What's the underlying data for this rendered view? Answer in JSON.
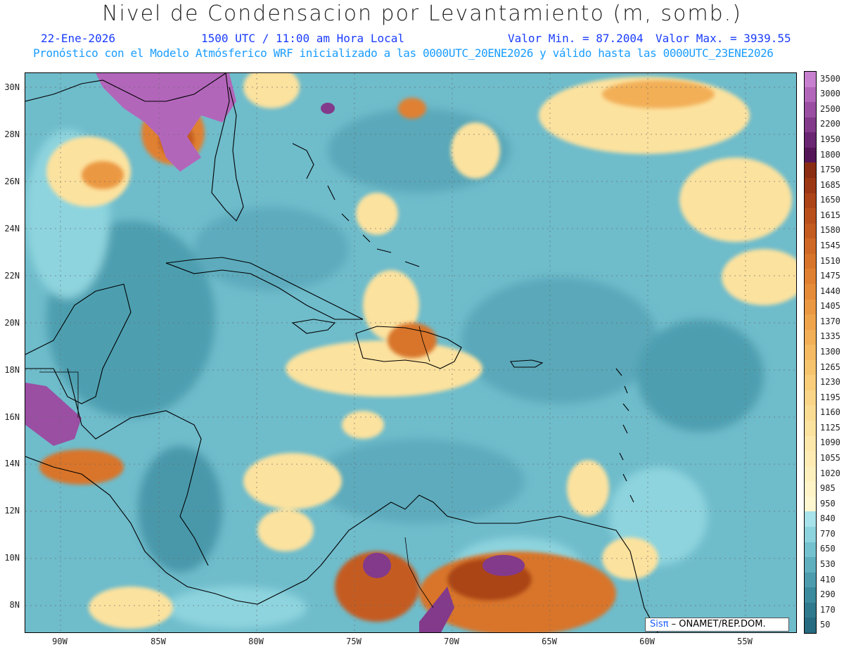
{
  "title": "Nivel de Condensacion por Levantamiento (m, somb.)",
  "date": "22-Ene-2026",
  "time": "1500 UTC / 11:00 am Hora Local",
  "min_label": "Valor Min. = 87.2004",
  "max_label": "Valor Max. = 3939.55",
  "forecast_note": "Pronóstico con el Modelo Atmósferico WRF inicializado a las 0000UTC_20ENE2026 y válido hasta las  0000UTC_23ENE2026",
  "lat_labels": [
    "30N",
    "28N",
    "26N",
    "24N",
    "22N",
    "20N",
    "18N",
    "16N",
    "14N",
    "12N",
    "10N",
    "8N"
  ],
  "lon_labels": [
    "90W",
    "85W",
    "80W",
    "75W",
    "70W",
    "65W",
    "60W",
    "55W"
  ],
  "legend": {
    "labels": [
      "3500",
      "3000",
      "2500",
      "2200",
      "1950",
      "1800",
      "1750",
      "1685",
      "1650",
      "1615",
      "1580",
      "1545",
      "1510",
      "1475",
      "1440",
      "1405",
      "1370",
      "1335",
      "1300",
      "1265",
      "1230",
      "1195",
      "1160",
      "1125",
      "1090",
      "1055",
      "1020",
      "985",
      "950",
      "840",
      "770",
      "650",
      "530",
      "410",
      "290",
      "170",
      "50"
    ],
    "colors": [
      "#c77fcf",
      "#b266ba",
      "#9a4fa3",
      "#833a8b",
      "#6a2672",
      "#551658",
      "#8a2d12",
      "#9c3714",
      "#ac4418",
      "#b9501c",
      "#c45c20",
      "#cf6825",
      "#d8742a",
      "#e08031",
      "#e68c39",
      "#eb9842",
      "#efa44c",
      "#f2af56",
      "#f5ba62",
      "#f7c46e",
      "#f9cd7a",
      "#fad587",
      "#fbdc93",
      "#fce29f",
      "#fde7aa",
      "#feecb4",
      "#fef0bd",
      "#fef4c7",
      "#fef7d0",
      "#a8e2ea",
      "#8ed4de",
      "#74c2cf",
      "#5fafbf",
      "#4c9cae",
      "#3c8a9d",
      "#2f798d",
      "#266b80"
    ]
  },
  "credit": {
    "brand": "Sisπ",
    "text": "– ONAMET/REP.DOM."
  }
}
